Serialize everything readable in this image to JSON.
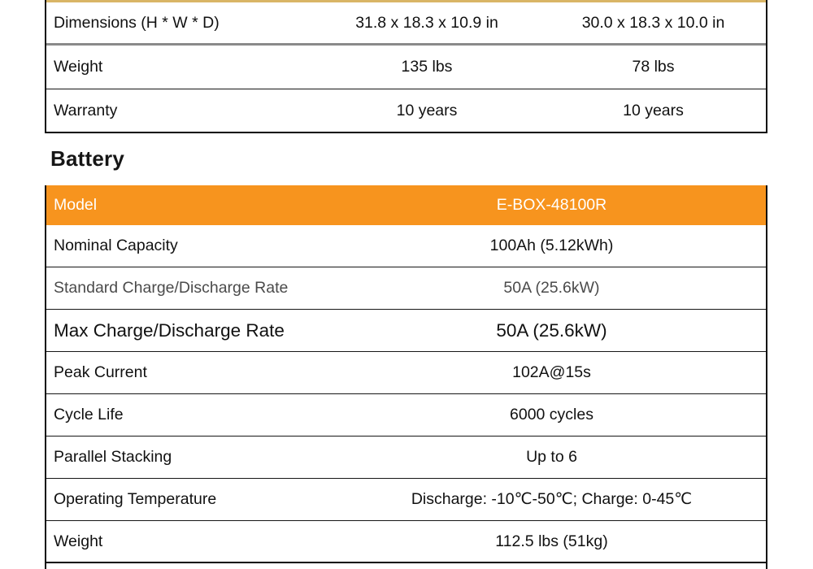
{
  "colors": {
    "accent_orange": "#f7941e",
    "gold_line": "#d9b566",
    "row_border_gray": "#8a8a8a",
    "muted_text": "#4b4b4b"
  },
  "top_table": {
    "rows": [
      {
        "label": "Dimensions (H * W * D)",
        "value1": "31.8 x 18.3 x 10.9 in",
        "value2": "30.0 x 18.3 x 10.0 in"
      },
      {
        "label": "Weight",
        "value1": "135 lbs",
        "value2": "78 lbs"
      },
      {
        "label": "Warranty",
        "value1": "10 years",
        "value2": "10 years"
      }
    ]
  },
  "section": {
    "title": "Battery"
  },
  "battery_table": {
    "header": {
      "label": "Model",
      "value": "E-BOX-48100R"
    },
    "rows": [
      {
        "label": "Nominal Capacity",
        "value": "100Ah (5.12kWh)",
        "style": "normal"
      },
      {
        "label": "Standard Charge/Discharge Rate",
        "value": "50A (25.6kW)",
        "style": "muted"
      },
      {
        "label": "Max Charge/Discharge Rate",
        "value": "50A (25.6kW)",
        "style": "large"
      },
      {
        "label": "Peak Current",
        "value": "102A@15s",
        "style": "normal"
      },
      {
        "label": "Cycle Life",
        "value": "6000 cycles",
        "style": "normal"
      },
      {
        "label": "Parallel Stacking",
        "value": "Up to 6",
        "style": "normal"
      },
      {
        "label": "Operating Temperature",
        "value": "Discharge: -10℃-50℃; Charge: 0-45℃",
        "style": "normal"
      },
      {
        "label": "Weight",
        "value": "112.5 lbs (51kg)",
        "style": "normal"
      }
    ]
  }
}
